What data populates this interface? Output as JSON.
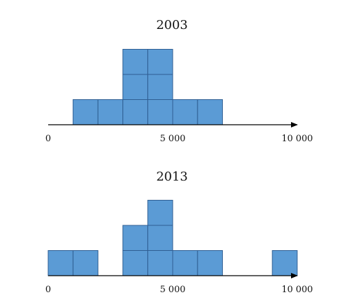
{
  "colors": {
    "block_fill": "#5b9bd5",
    "block_stroke": "#2f5e92",
    "axis": "#000000",
    "text": "#111111"
  },
  "chart_data": [
    {
      "type": "bar",
      "title": "2003",
      "xlim": [
        0,
        10000
      ],
      "bin_width": 1000,
      "bins": [
        {
          "x_start": 1000,
          "count": 1
        },
        {
          "x_start": 2000,
          "count": 1
        },
        {
          "x_start": 3000,
          "count": 3
        },
        {
          "x_start": 4000,
          "count": 3
        },
        {
          "x_start": 5000,
          "count": 1
        },
        {
          "x_start": 6000,
          "count": 1
        }
      ],
      "ticks": [
        {
          "value": 0,
          "label": "0"
        },
        {
          "value": 5000,
          "label": "5 000"
        },
        {
          "value": 10000,
          "label": "10 000"
        }
      ],
      "grid": false
    },
    {
      "type": "bar",
      "title": "2013",
      "xlim": [
        0,
        10000
      ],
      "bin_width": 1000,
      "bins": [
        {
          "x_start": 0,
          "count": 1
        },
        {
          "x_start": 1000,
          "count": 1
        },
        {
          "x_start": 3000,
          "count": 2
        },
        {
          "x_start": 4000,
          "count": 3
        },
        {
          "x_start": 5000,
          "count": 1
        },
        {
          "x_start": 6000,
          "count": 1
        },
        {
          "x_start": 9000,
          "count": 1
        }
      ],
      "ticks": [
        {
          "value": 0,
          "label": "0"
        },
        {
          "value": 5000,
          "label": "5 000"
        },
        {
          "value": 10000,
          "label": "10 000"
        }
      ],
      "grid": false
    }
  ]
}
